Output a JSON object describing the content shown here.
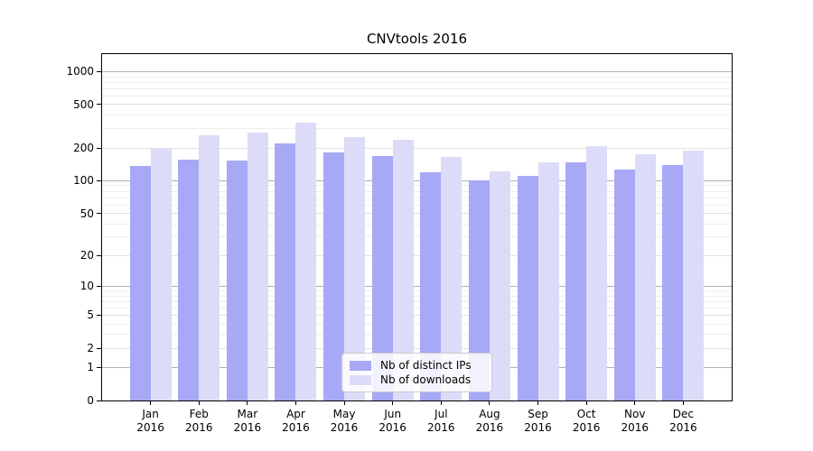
{
  "chart_data": {
    "type": "bar",
    "title": "CNVtools 2016",
    "x_months": [
      "Jan",
      "Feb",
      "Mar",
      "Apr",
      "May",
      "Jun",
      "Jul",
      "Aug",
      "Sep",
      "Oct",
      "Nov",
      "Dec"
    ],
    "x_year": "2016",
    "categories": [
      "Jan 2016",
      "Feb 2016",
      "Mar 2016",
      "Apr 2016",
      "May 2016",
      "Jun 2016",
      "Jul 2016",
      "Aug 2016",
      "Sep 2016",
      "Oct 2016",
      "Nov 2016",
      "Dec 2016"
    ],
    "series": [
      {
        "name": "Nb of distinct IPs",
        "color": "#a8a8f6",
        "values": [
          138,
          156,
          153,
          220,
          182,
          168,
          121,
          100,
          110,
          148,
          128,
          140
        ]
      },
      {
        "name": "Nb of downloads",
        "color": "#dcdcf8",
        "values": [
          200,
          261,
          277,
          342,
          250,
          238,
          166,
          123,
          148,
          210,
          175,
          191
        ]
      }
    ],
    "y_scale": "log1p",
    "y_ticks": [
      0,
      1,
      2,
      5,
      10,
      20,
      50,
      100,
      200,
      500,
      1000
    ],
    "y_major_gridlines": [
      1,
      10,
      100,
      1000
    ],
    "y_mid_gridlines": [
      2,
      5,
      20,
      50,
      200,
      500
    ],
    "y_minor_gridlines": [
      3,
      4,
      6,
      7,
      8,
      9,
      30,
      40,
      60,
      70,
      80,
      90,
      300,
      400,
      600,
      700,
      800,
      900
    ],
    "ylim": [
      0,
      1450
    ],
    "grid": true,
    "legend_position": "lower center"
  },
  "style_colors": {
    "major_grid": "#b0b0b0",
    "mid_grid": "#e0e0e0",
    "minor_grid": "#ededed",
    "axis": "#000000",
    "background": "#ffffff",
    "text": "#000000"
  }
}
